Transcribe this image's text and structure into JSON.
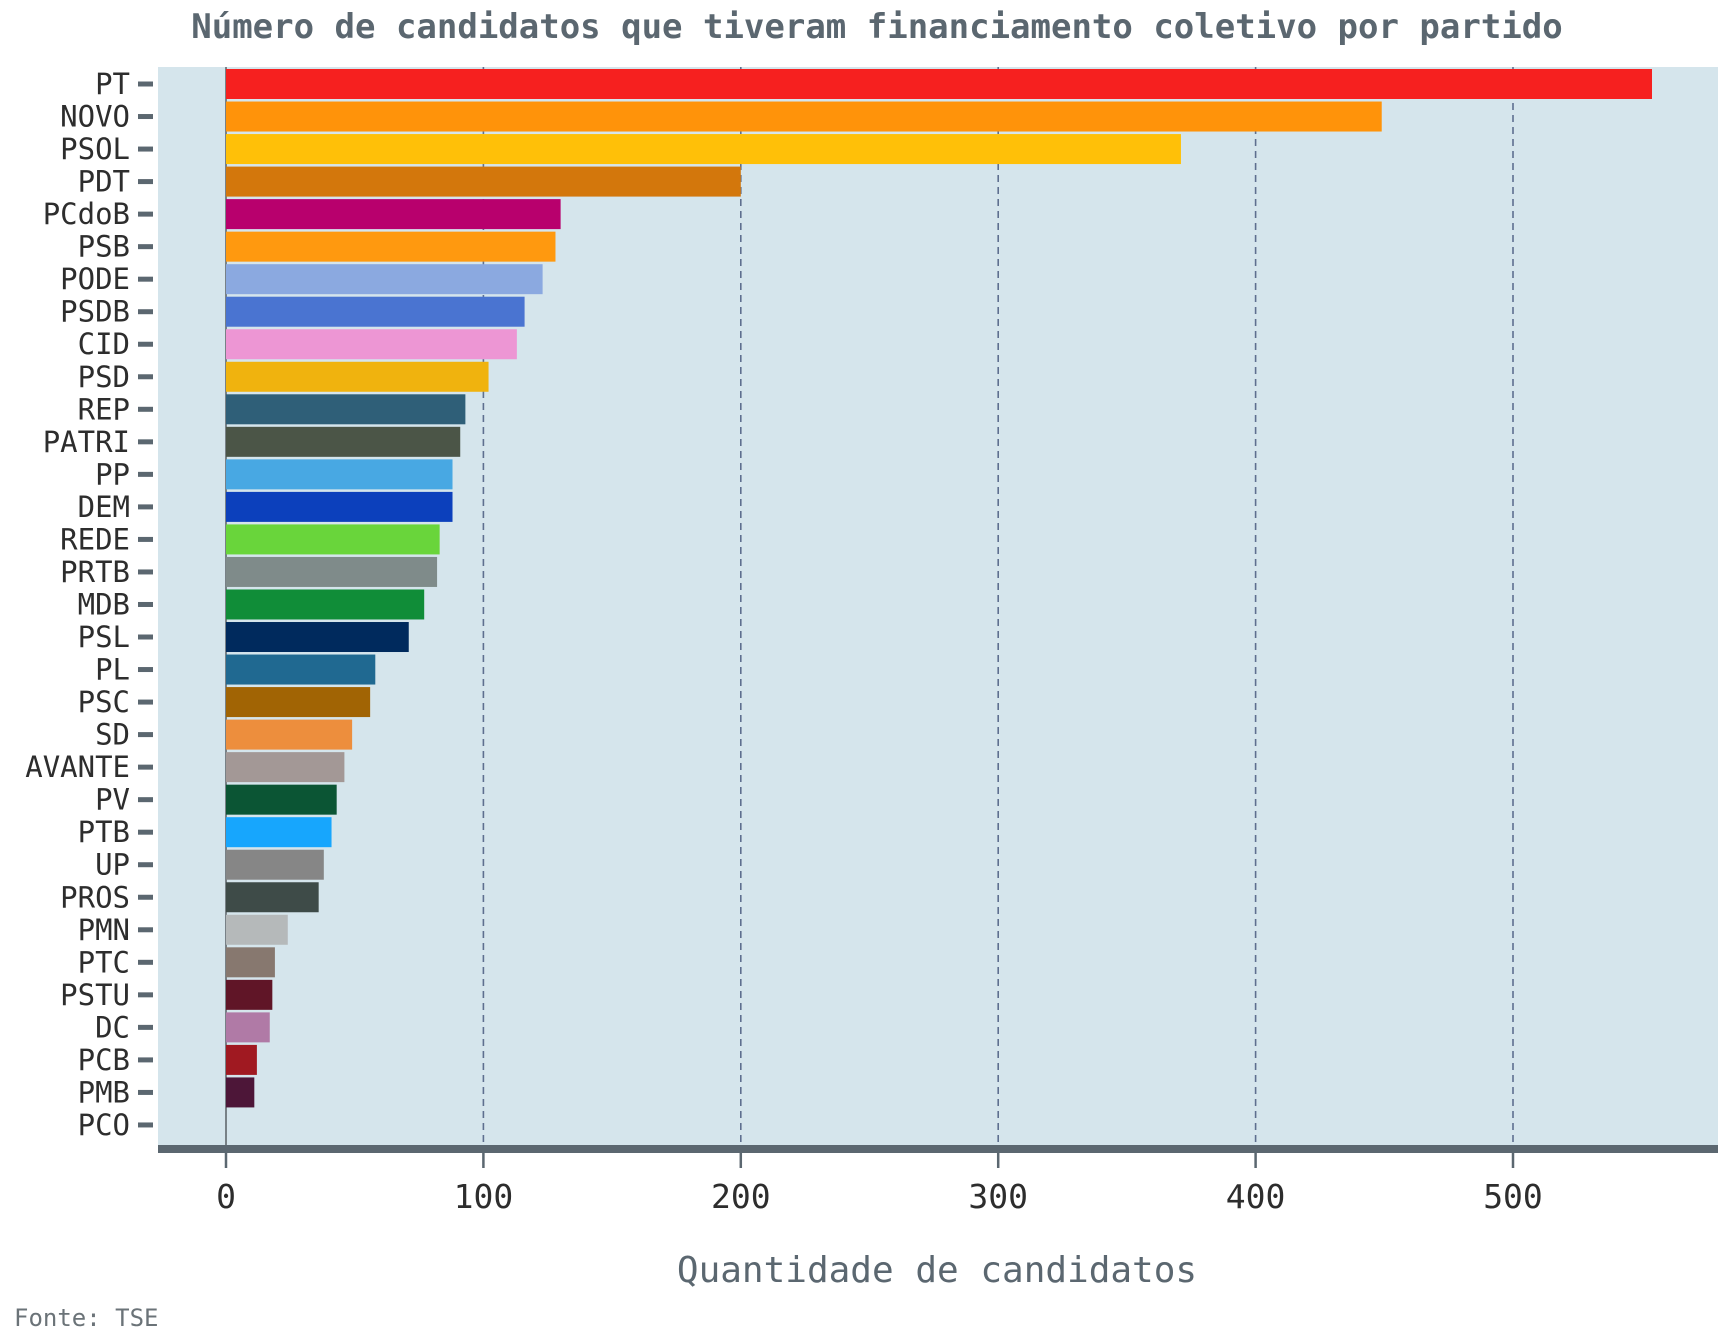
{
  "chart_data": {
    "type": "bar",
    "orientation": "horizontal",
    "title": "Número de candidatos que tiveram financiamento coletivo por partido",
    "xlabel": "Quantidade de candidatos",
    "ylabel": "",
    "source": "Fonte: TSE",
    "xlim": [
      -27,
      582
    ],
    "xticks": [
      0,
      100,
      200,
      300,
      400,
      500
    ],
    "grid": "x-dashed",
    "plot_background": "#d5e5ec",
    "axis_color": "#5b6770",
    "categories": [
      "PT",
      "NOVO",
      "PSOL",
      "PDT",
      "PCdoB",
      "PSB",
      "PODE",
      "PSDB",
      "CID",
      "PSD",
      "REP",
      "PATRI",
      "PP",
      "DEM",
      "REDE",
      "PRTB",
      "MDB",
      "PSL",
      "PL",
      "PSC",
      "SD",
      "AVANTE",
      "PV",
      "PTB",
      "UP",
      "PROS",
      "PMN",
      "PTC",
      "PSTU",
      "DC",
      "PCB",
      "PMB",
      "PCO"
    ],
    "values": [
      554,
      449,
      371,
      200,
      130,
      128,
      123,
      116,
      113,
      102,
      93,
      91,
      88,
      88,
      83,
      82,
      77,
      71,
      58,
      56,
      49,
      46,
      43,
      41,
      38,
      36,
      24,
      19,
      18,
      17,
      12,
      11,
      0
    ],
    "colors": [
      "#f6201f",
      "#ff930a",
      "#ffc008",
      "#d3770c",
      "#b8006d",
      "#ff990f",
      "#8ba9e0",
      "#4a74d1",
      "#ed96d4",
      "#f0b30e",
      "#2f5f78",
      "#4b5547",
      "#48a8e3",
      "#0c40bc",
      "#69d53b",
      "#7f8b8a",
      "#108d38",
      "#002a5d",
      "#206991",
      "#a16404",
      "#ed8e3d",
      "#a39896",
      "#0b5534",
      "#17a6fd",
      "#868686",
      "#3e4b48",
      "#b5b9ba",
      "#87786f",
      "#601527",
      "#b07aa6",
      "#a01921",
      "#4d1638",
      "#999999"
    ]
  }
}
